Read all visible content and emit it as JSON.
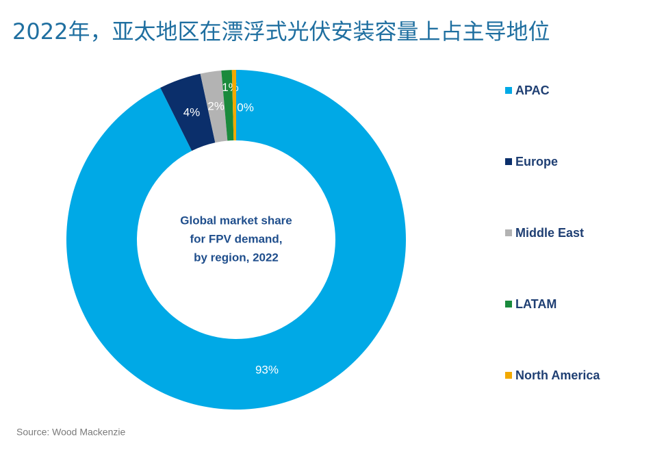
{
  "chart_data": {
    "type": "donut",
    "title": "2022年，亚太地区在漂浮式光伏安装容量上占主导地位",
    "center_label": [
      "Global market share",
      "for FPV demand,",
      "by region, 2022"
    ],
    "categories": [
      "APAC",
      "Europe",
      "Middle East",
      "LATAM",
      "North America"
    ],
    "values": [
      93,
      4,
      2,
      1,
      0.4
    ],
    "value_labels": [
      "93%",
      "4%",
      "2%",
      "1%",
      "0%"
    ],
    "colors": [
      "#00a9e6",
      "#0b2f6b",
      "#b3b3b3",
      "#1a8a3c",
      "#f2a900"
    ],
    "source": "Source: Wood Mackenzie"
  }
}
